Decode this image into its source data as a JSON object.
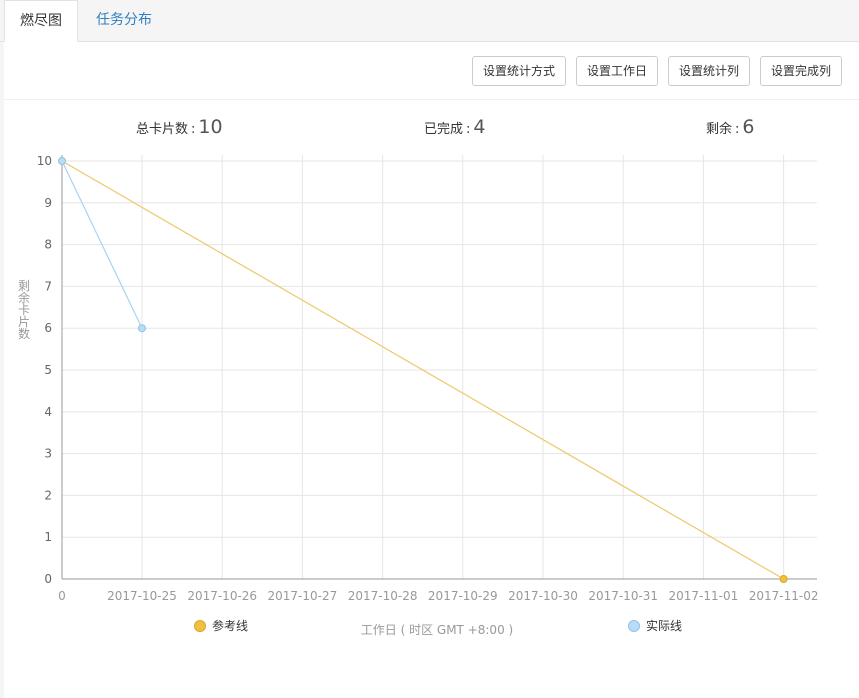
{
  "tabs": [
    {
      "label": "燃尽图"
    },
    {
      "label": "任务分布"
    }
  ],
  "toolbar": {
    "buttons": [
      {
        "label": "设置统计方式"
      },
      {
        "label": "设置工作日"
      },
      {
        "label": "设置统计列"
      },
      {
        "label": "设置完成列"
      }
    ]
  },
  "stats": {
    "total_label": "总卡片数",
    "total_value": "10",
    "done_label": "已完成",
    "done_value": "4",
    "remaining_label": "剩余",
    "remaining_value": "6",
    "colon": ":"
  },
  "chart_data": {
    "type": "line",
    "xlabel": "工作日 ( 时区 GMT +8:00 )",
    "ylabel": "剩余卡片数",
    "categories": [
      "0",
      "2017-10-25",
      "2017-10-26",
      "2017-10-27",
      "2017-10-28",
      "2017-10-29",
      "2017-10-30",
      "2017-10-31",
      "2017-11-01",
      "2017-11-02"
    ],
    "ylim": [
      0,
      10
    ],
    "yticks": [
      "0",
      "1",
      "2",
      "3",
      "4",
      "5",
      "6",
      "7",
      "8",
      "9",
      "10"
    ],
    "grid": true,
    "legend_position": "bottom",
    "series": [
      {
        "name": "参考线",
        "color": "#f0c040",
        "points": [
          [
            0,
            10
          ],
          [
            9,
            0
          ]
        ]
      },
      {
        "name": "实际线",
        "color": "#a9d3f0",
        "points": [
          [
            0,
            10
          ],
          [
            1,
            6
          ]
        ]
      }
    ]
  }
}
